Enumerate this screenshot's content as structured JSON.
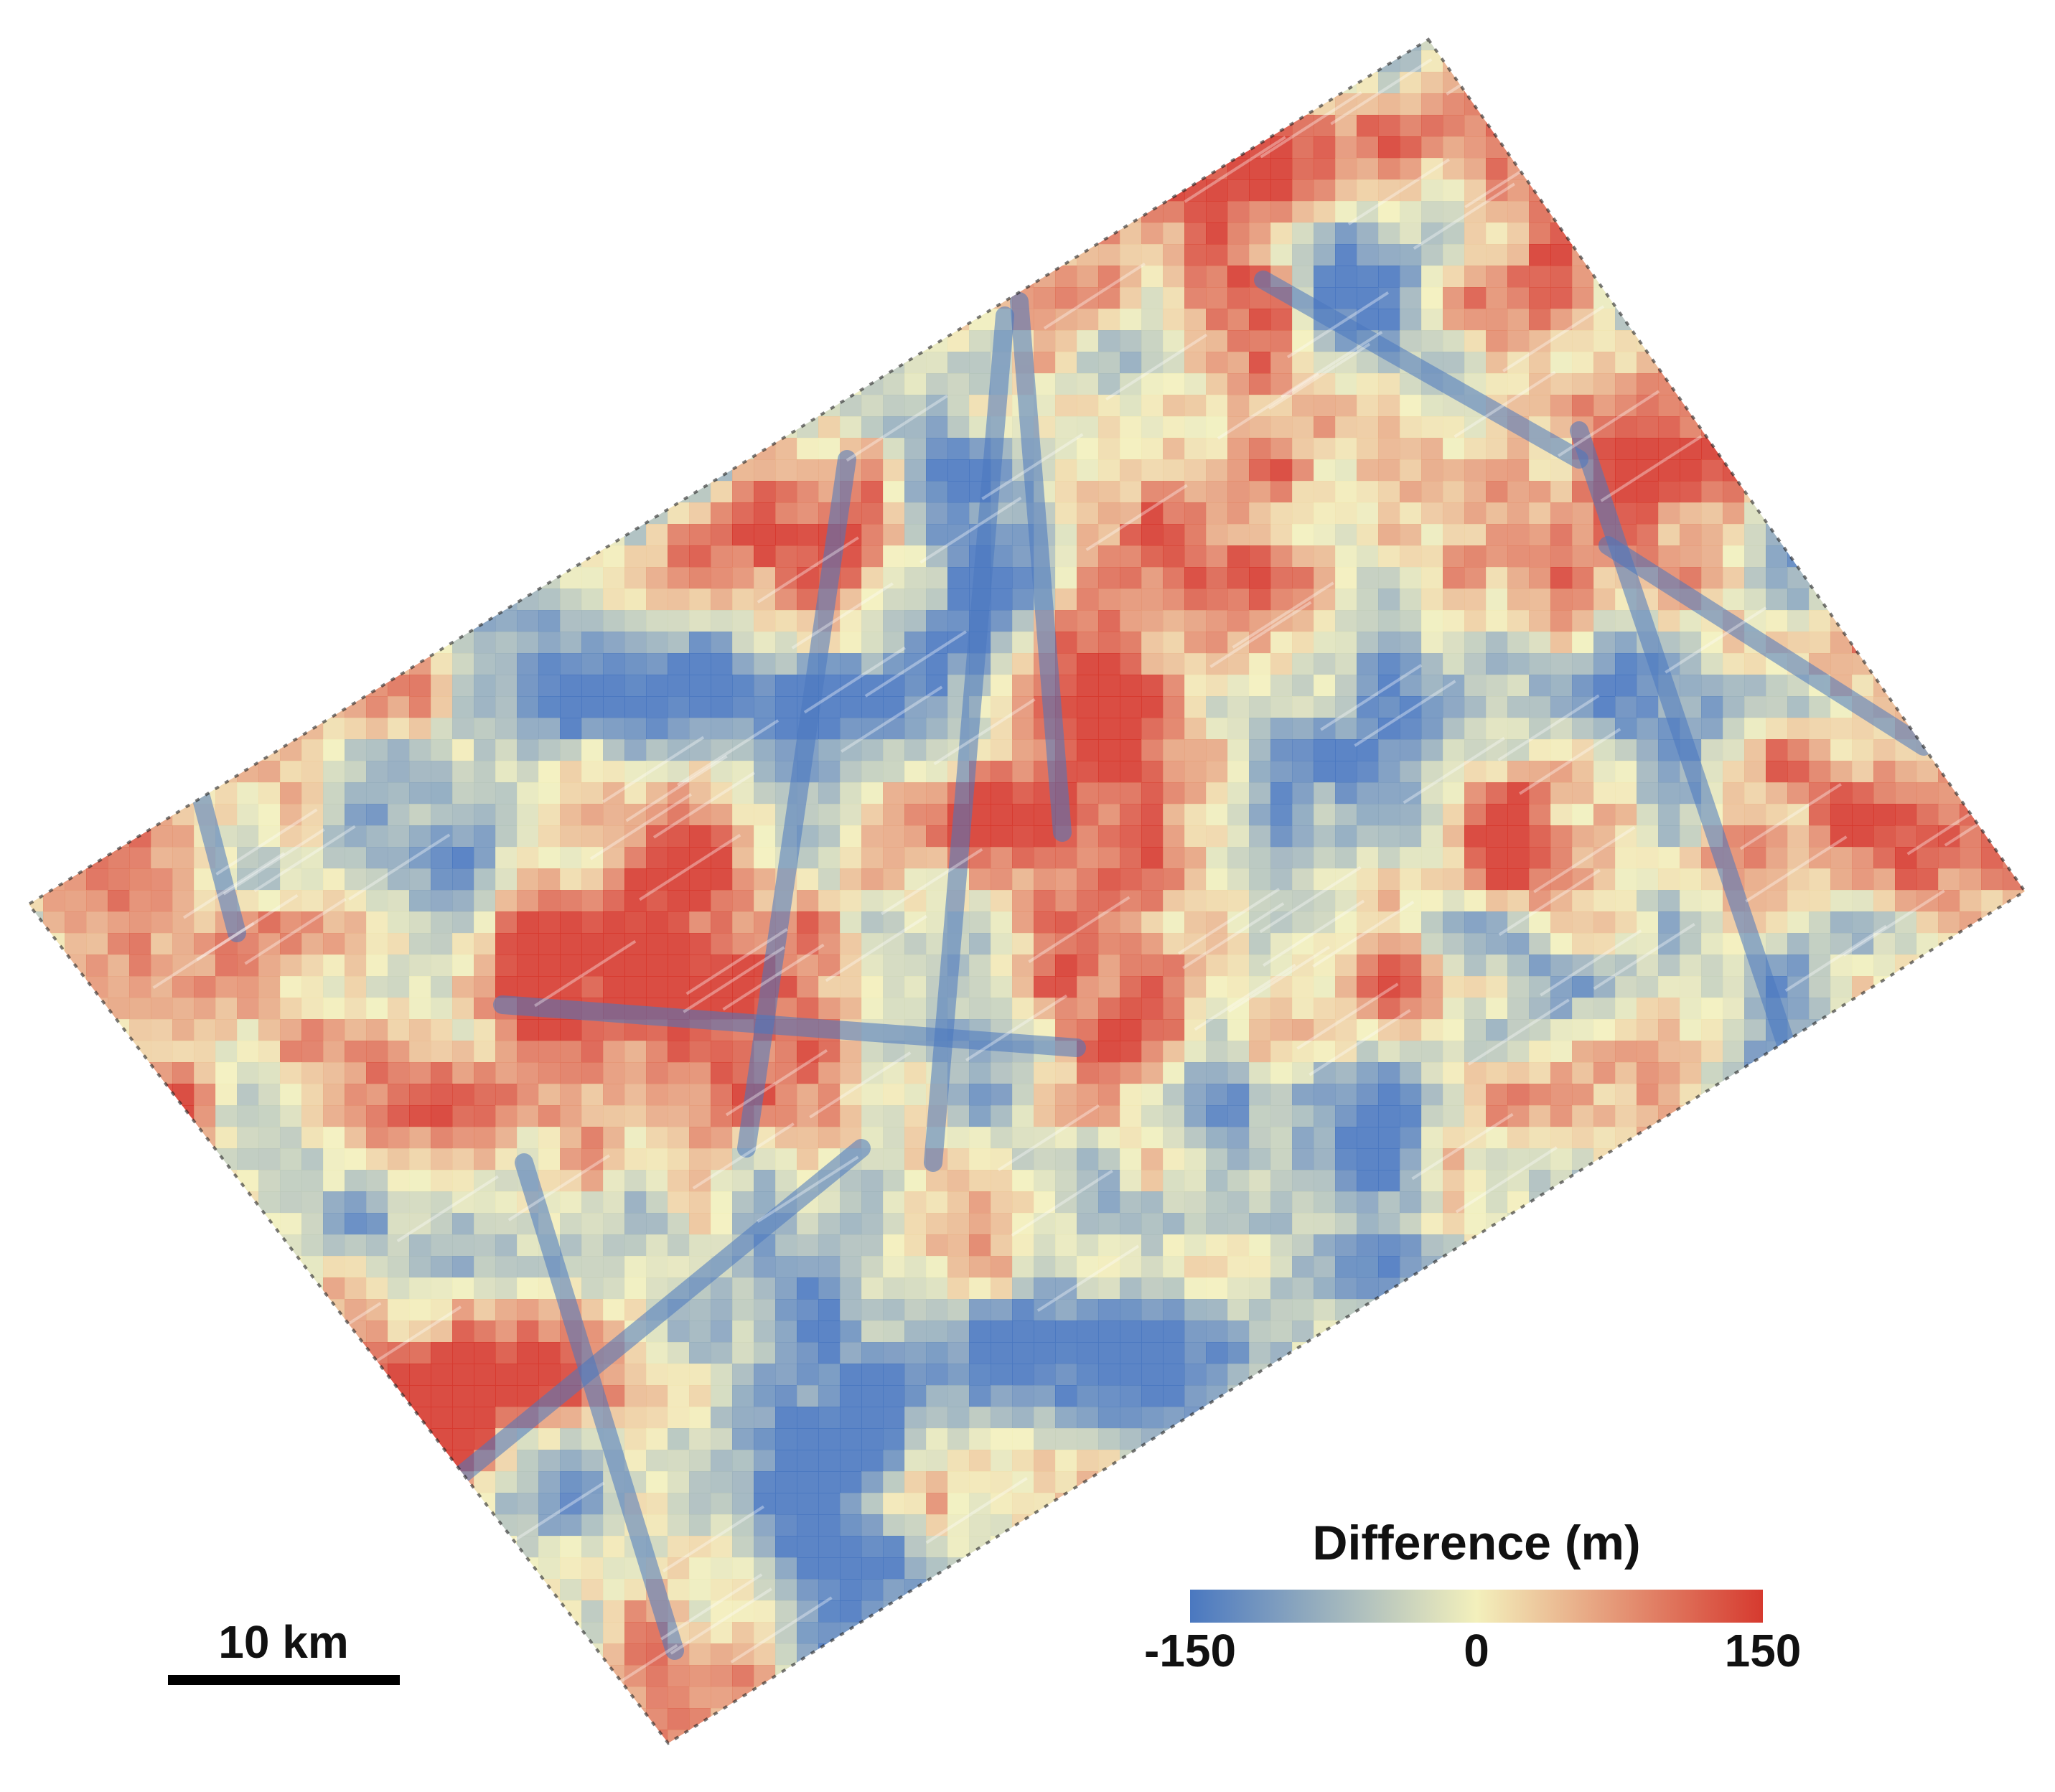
{
  "legend": {
    "title": "Difference (m)",
    "range": [
      -150,
      150
    ],
    "ticks": [
      -150,
      0,
      150
    ],
    "colors": [
      "#4a78c0",
      "#f3f0bc",
      "#d63a2f"
    ]
  },
  "scale_bar": {
    "label": "10 km"
  }
}
